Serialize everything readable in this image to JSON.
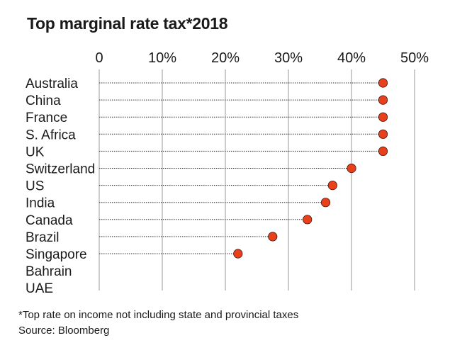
{
  "chart_data": {
    "type": "scatter",
    "title": "Top marginal rate tax*2018",
    "xlabel": "",
    "ylabel": "",
    "xlim": [
      0,
      50
    ],
    "x_ticks": [
      "0",
      "10%",
      "20%",
      "30%",
      "40%",
      "50%"
    ],
    "categories": [
      "Australia",
      "China",
      "France",
      "S. Africa",
      "UK",
      "Switzerland",
      "US",
      "India",
      "Canada",
      "Brazil",
      "Singapore",
      "Bahrain",
      "UAE"
    ],
    "values": [
      45,
      45,
      45,
      45,
      45,
      40,
      37,
      35.9,
      33,
      27.5,
      22,
      null,
      null
    ],
    "marker_color": "#e8401c",
    "grid": true
  },
  "footnote": "*Top rate on income not including state and provincial taxes",
  "source": "Source: Bloomberg"
}
